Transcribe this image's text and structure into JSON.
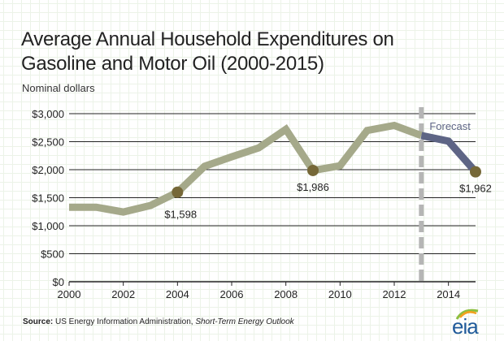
{
  "title_line1": "Average Annual Household Expenditures on",
  "title_line2": "Gasoline and Motor Oil (2000-2015)",
  "subtitle": "Nominal dollars",
  "source": {
    "label": "Source:",
    "text": "US Energy Information Administration,",
    "italic": "Short-Term Energy Outlook"
  },
  "logo_text": "eia",
  "colors": {
    "history_line": "#a5a98a",
    "forecast_line": "#5e6585",
    "marker": "#766838",
    "divider": "#b5b5b5",
    "forecast_label": "#5e6585",
    "gridline": "#222222",
    "logo": "#1f5a99"
  },
  "chart_data": {
    "type": "line",
    "title": "Average Annual Household Expenditures on Gasoline and Motor Oil (2000-2015)",
    "ylabel": "Nominal dollars",
    "xlabel": "",
    "ylim": [
      0,
      3000
    ],
    "xlim": [
      2000,
      2015
    ],
    "y_ticks": [
      {
        "value": 0,
        "label": "$0"
      },
      {
        "value": 500,
        "label": "$500"
      },
      {
        "value": 1000,
        "label": "$1,000"
      },
      {
        "value": 1500,
        "label": "$1,500"
      },
      {
        "value": 2000,
        "label": "$2,000"
      },
      {
        "value": 2500,
        "label": "$2,500"
      },
      {
        "value": 3000,
        "label": "$3,000"
      }
    ],
    "x_ticks": [
      {
        "value": 2000,
        "label": "2000"
      },
      {
        "value": 2002,
        "label": "2002"
      },
      {
        "value": 2004,
        "label": "2004"
      },
      {
        "value": 2006,
        "label": "2006"
      },
      {
        "value": 2008,
        "label": "2008"
      },
      {
        "value": 2010,
        "label": "2010"
      },
      {
        "value": 2012,
        "label": "2012"
      },
      {
        "value": 2014,
        "label": "2014"
      }
    ],
    "grid": "horizontal",
    "forecast_start": 2013,
    "forecast_label": "Forecast",
    "series": [
      {
        "x": [
          2000,
          2001,
          2002,
          2003,
          2004,
          2005,
          2006,
          2007,
          2008,
          2009,
          2010,
          2011,
          2012,
          2013
        ],
        "values": [
          1330,
          1330,
          1245,
          1360,
          1598,
          2060,
          2230,
          2390,
          2720,
          1986,
          2070,
          2700,
          2790,
          2610
        ]
      },
      {
        "x": [
          2013,
          2014,
          2015
        ],
        "values": [
          2610,
          2510,
          1962
        ]
      }
    ],
    "highlights": [
      {
        "x": 2004,
        "y": 1598,
        "label": "$1,598",
        "anchor": "right"
      },
      {
        "x": 2009,
        "y": 1986,
        "label": "$1,986",
        "anchor": "below"
      },
      {
        "x": 2015,
        "y": 1962,
        "label": "$1,962",
        "anchor": "below"
      }
    ]
  }
}
